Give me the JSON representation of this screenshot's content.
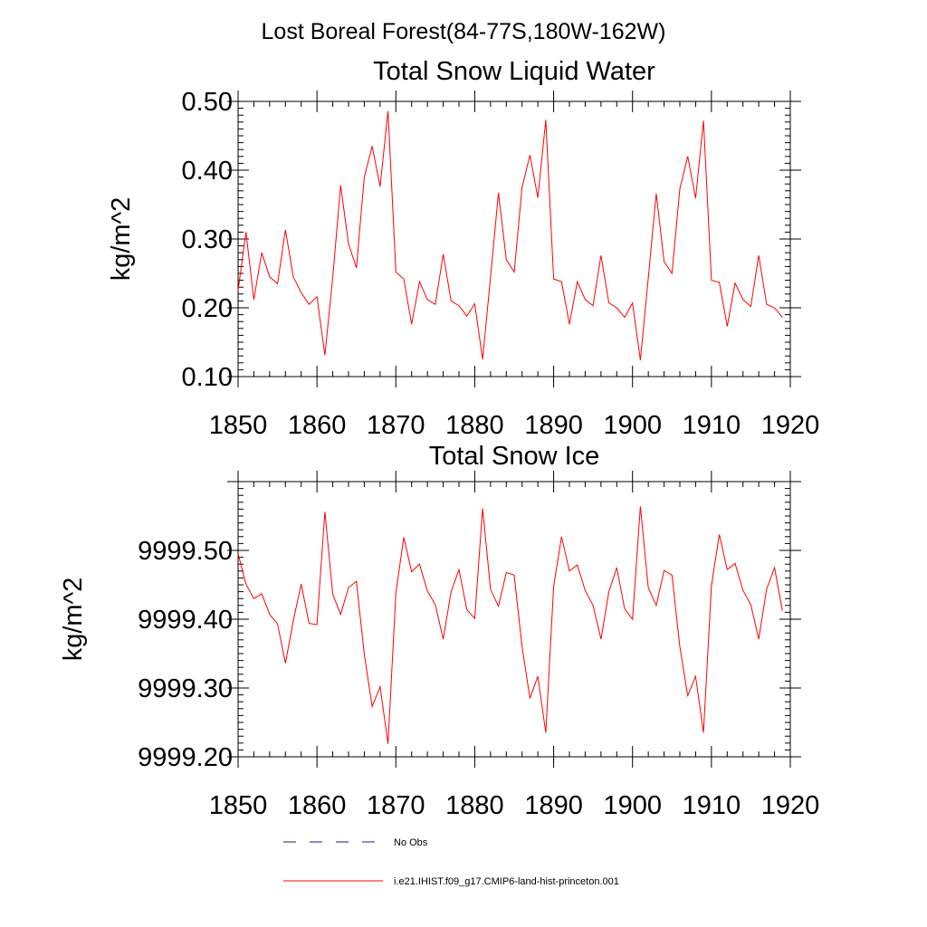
{
  "figure": {
    "suptitle": "Lost Boreal Forest(84-77S,180W-162W)"
  },
  "chart_data": [
    {
      "type": "line",
      "title": "Total Snow Liquid Water",
      "xlabel": "",
      "ylabel": "kg/m^2",
      "xlim": [
        1850,
        1920
      ],
      "ylim": [
        0.1,
        0.5
      ],
      "xticks": [
        1850,
        1860,
        1870,
        1880,
        1890,
        1900,
        1910,
        1920
      ],
      "xtick_labels": [
        "1850",
        "1860",
        "1870",
        "1880",
        "1890",
        "1900",
        "1910",
        "1920"
      ],
      "yticks": [
        0.1,
        0.2,
        0.3,
        0.4,
        0.5
      ],
      "ytick_labels": [
        "0.10",
        "0.20",
        "0.30",
        "0.40",
        "0.50"
      ],
      "grid": false,
      "x": [
        1850,
        1851,
        1852,
        1853,
        1854,
        1855,
        1856,
        1857,
        1858,
        1859,
        1860,
        1861,
        1862,
        1863,
        1864,
        1865,
        1866,
        1867,
        1868,
        1869,
        1870,
        1871,
        1872,
        1873,
        1874,
        1875,
        1876,
        1877,
        1878,
        1879,
        1880,
        1881,
        1882,
        1883,
        1884,
        1885,
        1886,
        1887,
        1888,
        1889,
        1890,
        1891,
        1892,
        1893,
        1894,
        1895,
        1896,
        1897,
        1898,
        1899,
        1900,
        1901,
        1902,
        1903,
        1904,
        1905,
        1906,
        1907,
        1908,
        1909,
        1910,
        1911,
        1912,
        1913,
        1914,
        1915,
        1916,
        1917,
        1918,
        1919
      ],
      "series": [
        {
          "name": "i.e21.IHIST.f09_g17.CMIP6-land-hist-princeton.001",
          "color": "#ff0000",
          "values": [
            0.225,
            0.31,
            0.212,
            0.28,
            0.245,
            0.235,
            0.313,
            0.245,
            0.222,
            0.205,
            0.216,
            0.131,
            0.245,
            0.378,
            0.293,
            0.258,
            0.39,
            0.435,
            0.376,
            0.486,
            0.252,
            0.242,
            0.176,
            0.238,
            0.212,
            0.205,
            0.278,
            0.21,
            0.203,
            0.188,
            0.206,
            0.125,
            0.245,
            0.367,
            0.27,
            0.252,
            0.375,
            0.422,
            0.36,
            0.473,
            0.242,
            0.238,
            0.176,
            0.238,
            0.212,
            0.203,
            0.276,
            0.207,
            0.2,
            0.186,
            0.207,
            0.124,
            0.243,
            0.366,
            0.267,
            0.25,
            0.373,
            0.42,
            0.359,
            0.472,
            0.24,
            0.237,
            0.173,
            0.236,
            0.212,
            0.202,
            0.276,
            0.205,
            0.2,
            0.186
          ]
        }
      ]
    },
    {
      "type": "line",
      "title": "Total Snow Ice",
      "xlabel": "",
      "ylabel": "kg/m^2",
      "xlim": [
        1850,
        1920
      ],
      "ylim": [
        9999.2,
        9999.6
      ],
      "xticks": [
        1850,
        1860,
        1870,
        1880,
        1890,
        1900,
        1910,
        1920
      ],
      "xtick_labels": [
        "1850",
        "1860",
        "1870",
        "1880",
        "1890",
        "1900",
        "1910",
        "1920"
      ],
      "yticks": [
        9999.2,
        9999.3,
        9999.4,
        9999.5
      ],
      "ytick_labels": [
        "9999.20",
        "9999.30",
        "9999.40",
        "9999.50"
      ],
      "grid": false,
      "x": [
        1850,
        1851,
        1852,
        1853,
        1854,
        1855,
        1856,
        1857,
        1858,
        1859,
        1860,
        1861,
        1862,
        1863,
        1864,
        1865,
        1866,
        1867,
        1868,
        1869,
        1870,
        1871,
        1872,
        1873,
        1874,
        1875,
        1876,
        1877,
        1878,
        1879,
        1880,
        1881,
        1882,
        1883,
        1884,
        1885,
        1886,
        1887,
        1888,
        1889,
        1890,
        1891,
        1892,
        1893,
        1894,
        1895,
        1896,
        1897,
        1898,
        1899,
        1900,
        1901,
        1902,
        1903,
        1904,
        1905,
        1906,
        1907,
        1908,
        1909,
        1910,
        1911,
        1912,
        1913,
        1914,
        1915,
        1916,
        1917,
        1918,
        1919
      ],
      "series": [
        {
          "name": "i.e21.IHIST.f09_g17.CMIP6-land-hist-princeton.001",
          "color": "#ff0000",
          "values": [
            9999.495,
            9999.451,
            9999.43,
            9999.437,
            9999.407,
            9999.393,
            9999.336,
            9999.398,
            9999.451,
            9999.394,
            9999.392,
            9999.556,
            9999.436,
            9999.407,
            9999.446,
            9999.455,
            9999.349,
            9999.273,
            9999.302,
            9999.219,
            9999.438,
            9999.519,
            9999.469,
            9999.48,
            9999.441,
            9999.421,
            9999.371,
            9999.44,
            9999.472,
            9999.414,
            9999.401,
            9999.561,
            9999.443,
            9999.419,
            9999.468,
            9999.464,
            9999.36,
            9999.285,
            9999.317,
            9999.235,
            9999.448,
            9999.52,
            9999.47,
            9999.479,
            9999.442,
            9999.42,
            9999.371,
            9999.44,
            9999.475,
            9999.415,
            9999.4,
            9999.564,
            9999.446,
            9999.42,
            9999.471,
            9999.464,
            9999.36,
            9999.289,
            9999.317,
            9999.235,
            9999.449,
            9999.523,
            9999.472,
            9999.481,
            9999.442,
            9999.421,
            9999.371,
            9999.444,
            9999.475,
            9999.412
          ]
        }
      ]
    }
  ],
  "legend": {
    "items": [
      {
        "label": "No Obs",
        "color": "#1a1a80",
        "style": "dashed"
      },
      {
        "label": "i.e21.IHIST.f09_g17.CMIP6-land-hist-princeton.001",
        "color": "#ff0000",
        "style": "solid"
      }
    ]
  }
}
